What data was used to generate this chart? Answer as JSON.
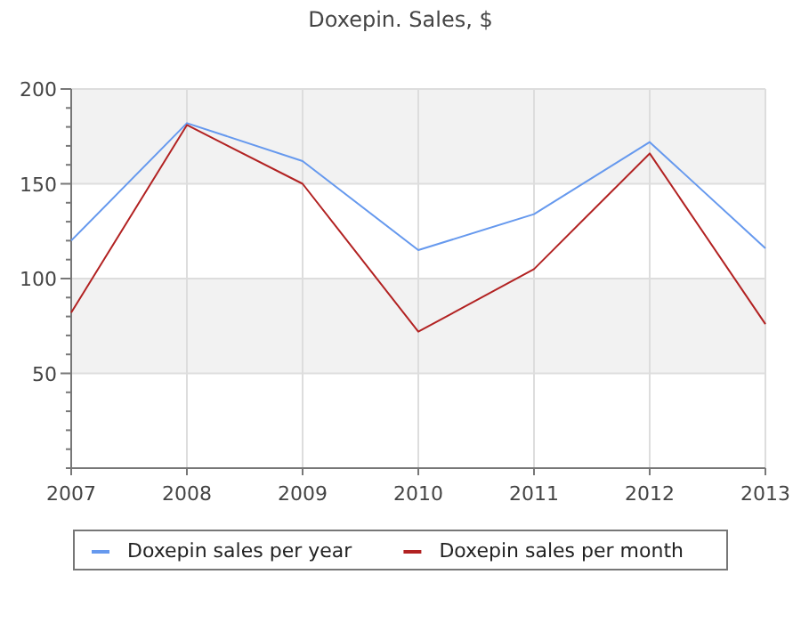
{
  "chart_data": {
    "type": "line",
    "title": "Doxepin. Sales, $",
    "x": [
      2007,
      2008,
      2009,
      2010,
      2011,
      2012,
      2013
    ],
    "series": [
      {
        "name": "Doxepin sales per year",
        "color": "#6699ee",
        "values": [
          120,
          182,
          162,
          115,
          134,
          172,
          116
        ]
      },
      {
        "name": "Doxepin sales per month",
        "color": "#b22222",
        "values": [
          82,
          181,
          150,
          72,
          105,
          166,
          76
        ]
      }
    ],
    "xlim": [
      2007,
      2013
    ],
    "xticks": [
      2007,
      2008,
      2009,
      2010,
      2011,
      2012,
      2013
    ],
    "ylim": [
      0,
      200
    ],
    "yticks": [
      {
        "value": 0,
        "label": null
      },
      {
        "value": 10,
        "label": null
      },
      {
        "value": 20,
        "label": null
      },
      {
        "value": 30,
        "label": null
      },
      {
        "value": 40,
        "label": null
      },
      50,
      {
        "value": 60,
        "label": null
      },
      {
        "value": 70,
        "label": null
      },
      {
        "value": 80,
        "label": null
      },
      {
        "value": 90,
        "label": null
      },
      100,
      {
        "value": 110,
        "label": null
      },
      {
        "value": 120,
        "label": null
      },
      {
        "value": 130,
        "label": null
      },
      {
        "value": 140,
        "label": null
      },
      150,
      {
        "value": 160,
        "label": null
      },
      {
        "value": 170,
        "label": null
      },
      {
        "value": 180,
        "label": null
      },
      {
        "value": 190,
        "label": null
      },
      200
    ],
    "bands": [
      {
        "axis": "y",
        "from": 50,
        "to": 100,
        "color": "#f2f2f2"
      },
      {
        "axis": "y",
        "from": 150,
        "to": 200,
        "color": "#f2f2f2"
      }
    ],
    "grid": true,
    "legend": "bottom",
    "marker": "none",
    "line_style": "solid"
  }
}
